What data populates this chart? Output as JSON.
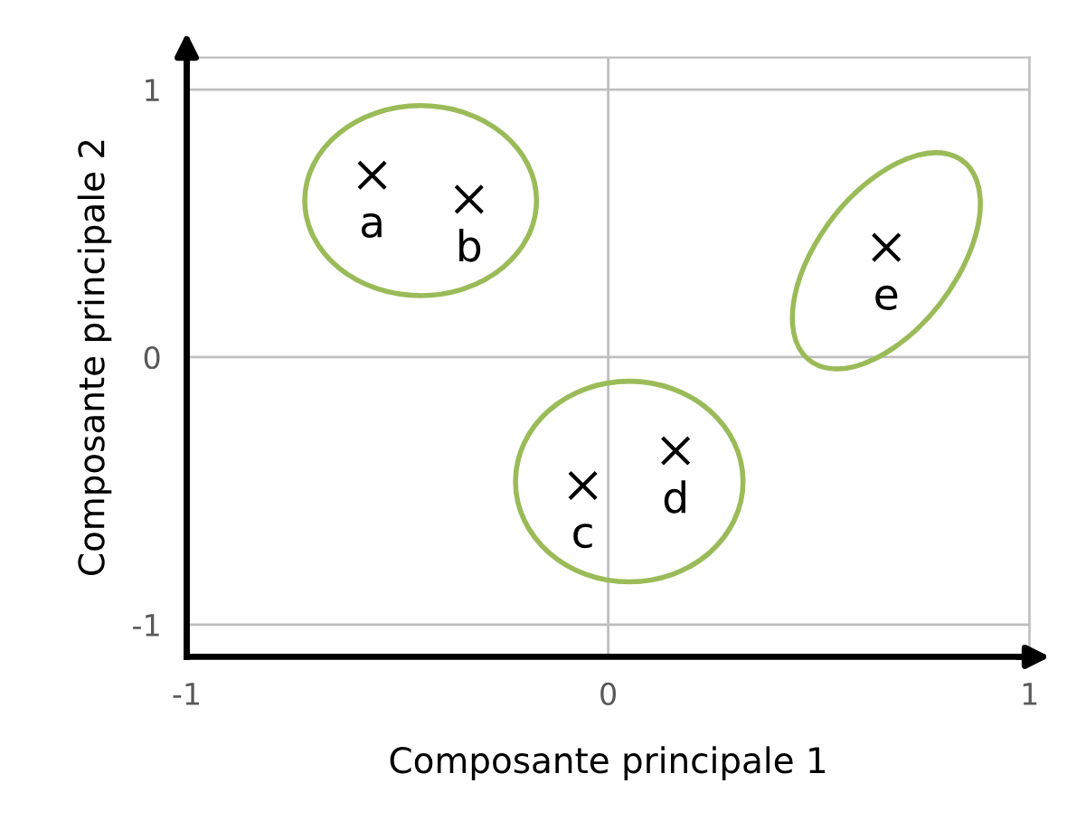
{
  "chart_data": {
    "type": "scatter",
    "xlabel": "Composante principale 1",
    "ylabel": "Composante principale 2",
    "xlim": [
      -1,
      1
    ],
    "ylim": [
      -1.12,
      1.12
    ],
    "xticks": [
      -1,
      0,
      1
    ],
    "yticks": [
      -1,
      0,
      1
    ],
    "grid": true,
    "marker": "cross",
    "series": [
      {
        "color": "#000000",
        "x": [
          -0.56,
          -0.33
        ],
        "values": [
          0.68,
          0.59
        ]
      },
      {
        "color": "#000000",
        "x": [
          -0.06,
          0.16
        ],
        "values": [
          -0.48,
          -0.35
        ]
      },
      {
        "color": "#000000",
        "x": [
          0.66
        ],
        "values": [
          0.41
        ]
      }
    ],
    "annotations": [
      {
        "text": "a",
        "x": -0.56,
        "y": 0.68
      },
      {
        "text": "b",
        "x": -0.33,
        "y": 0.59
      },
      {
        "text": "c",
        "x": -0.06,
        "y": -0.48
      },
      {
        "text": "d",
        "x": 0.16,
        "y": -0.35
      },
      {
        "text": "e",
        "x": 0.66,
        "y": 0.41
      }
    ]
  }
}
